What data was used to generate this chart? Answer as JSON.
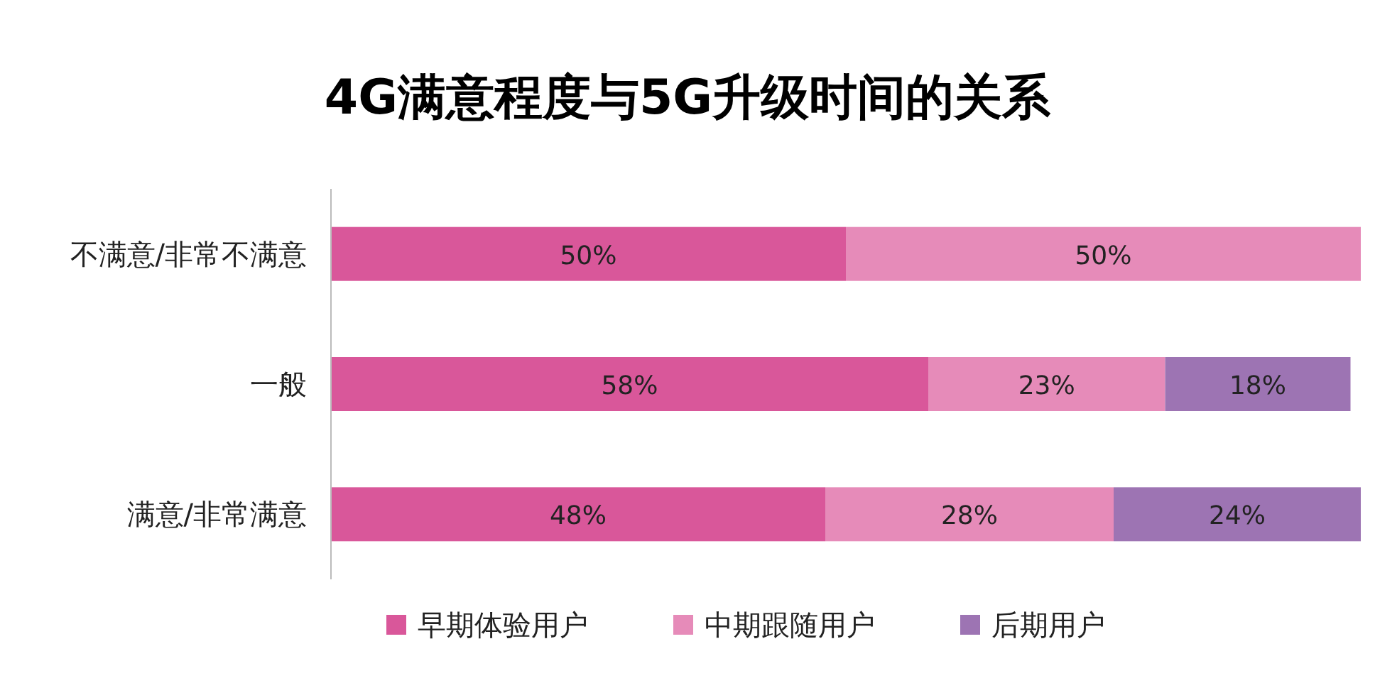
{
  "chart_data": {
    "type": "bar",
    "orientation": "horizontal",
    "stacked": true,
    "title": "4G满意程度与5G升级时间的关系",
    "categories": [
      "不满意/非常不满意",
      "一般",
      "满意/非常满意"
    ],
    "xlim": [
      0,
      100
    ],
    "tick_labels": "y",
    "legend": "bottom",
    "series": [
      {
        "name": "早期体验用户",
        "color": "#d9579a",
        "values": [
          50,
          58,
          48
        ],
        "value_labels": [
          "50%",
          "58%",
          "48%"
        ]
      },
      {
        "name": "中期跟随用户",
        "color": "#e68bb9",
        "values": [
          50,
          23,
          28
        ],
        "value_labels": [
          "50%",
          "23%",
          "28%"
        ]
      },
      {
        "name": "后期用户",
        "color": "#9d74b3",
        "values": [
          null,
          18,
          24
        ],
        "value_labels": [
          null,
          "18%",
          "24%"
        ]
      }
    ]
  }
}
